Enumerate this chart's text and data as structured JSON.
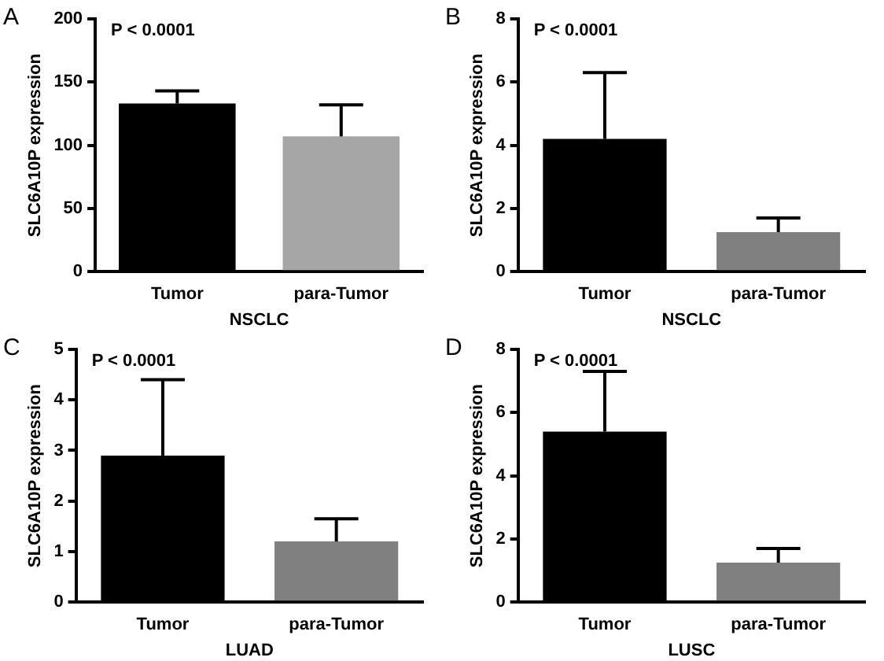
{
  "chart_data": [
    {
      "type": "bar",
      "annotations": [
        "A",
        "P < 0.0001"
      ],
      "xlabel": "NSCLC",
      "ylabel": "SLC6A10P expression",
      "categories": [
        "Tumor",
        "para-Tumor"
      ],
      "values": [
        133,
        107
      ],
      "colors": [
        "#000000",
        "#a6a6a6"
      ],
      "errors": [
        [
          133,
          143
        ],
        [
          107,
          132
        ]
      ],
      "ylim": [
        0,
        200
      ],
      "yticks": [
        0,
        50,
        100,
        150,
        200
      ],
      "grid": false,
      "legend": false
    },
    {
      "type": "bar",
      "annotations": [
        "B",
        "P < 0.0001"
      ],
      "xlabel": "NSCLC",
      "ylabel": "SLC6A10P expression",
      "categories": [
        "Tumor",
        "para-Tumor"
      ],
      "values": [
        4.2,
        1.25
      ],
      "colors": [
        "#000000",
        "#808080"
      ],
      "errors": [
        [
          4.2,
          6.3
        ],
        [
          1.25,
          1.7
        ]
      ],
      "ylim": [
        0,
        8
      ],
      "yticks": [
        0,
        2,
        4,
        6,
        8
      ],
      "grid": false,
      "legend": false
    },
    {
      "type": "bar",
      "annotations": [
        "C",
        "P < 0.0001"
      ],
      "xlabel": "LUAD",
      "ylabel": "SLC6A10P expression",
      "categories": [
        "Tumor",
        "para-Tumor"
      ],
      "values": [
        2.9,
        1.2
      ],
      "colors": [
        "#000000",
        "#808080"
      ],
      "errors": [
        [
          2.9,
          4.4
        ],
        [
          1.2,
          1.65
        ]
      ],
      "ylim": [
        0,
        5
      ],
      "yticks": [
        0,
        1,
        2,
        3,
        4,
        5
      ],
      "grid": false,
      "legend": false
    },
    {
      "type": "bar",
      "annotations": [
        "D",
        "P < 0.0001"
      ],
      "xlabel": "LUSC",
      "ylabel": "SLC6A10P expression",
      "categories": [
        "Tumor",
        "para-Tumor"
      ],
      "values": [
        5.4,
        1.25
      ],
      "colors": [
        "#000000",
        "#808080"
      ],
      "errors": [
        [
          5.4,
          7.3
        ],
        [
          1.25,
          1.7
        ]
      ],
      "ylim": [
        0,
        8
      ],
      "yticks": [
        0,
        2,
        4,
        6,
        8
      ],
      "grid": false,
      "legend": false
    }
  ]
}
